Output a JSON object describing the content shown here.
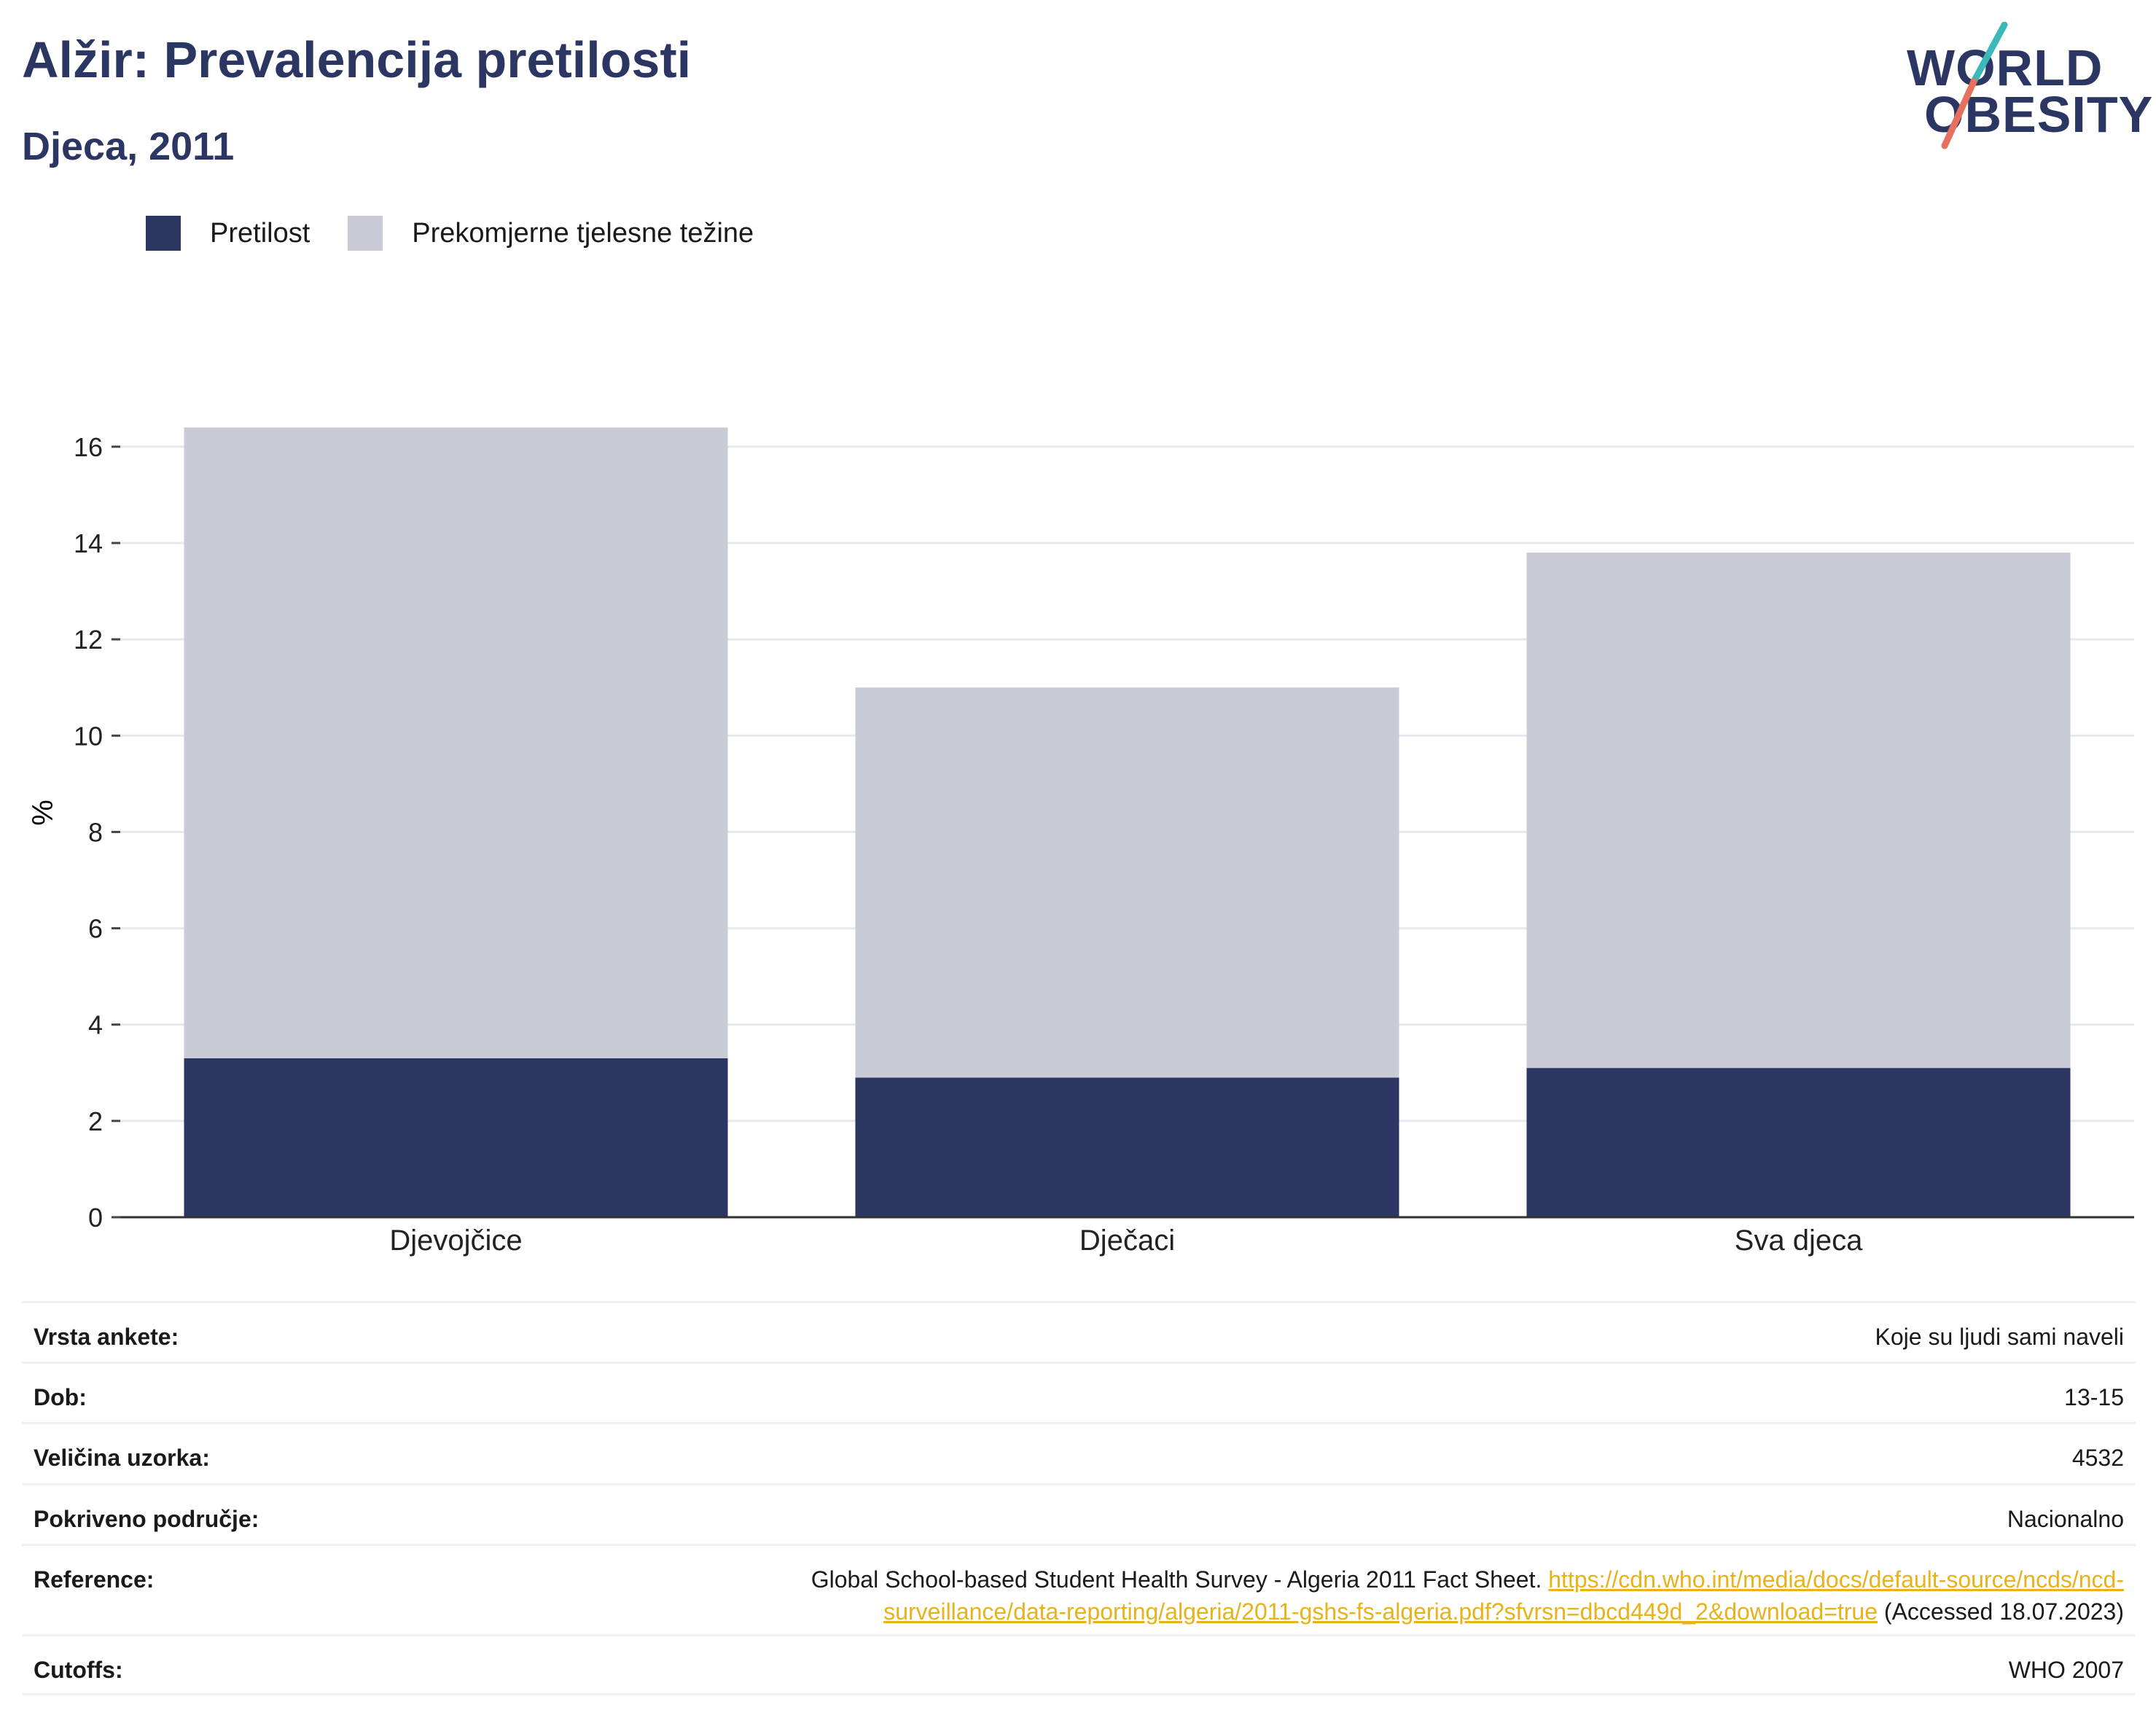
{
  "header": {
    "title": "Alžir: Prevalencija pretilosti",
    "subtitle": "Djeca, 2011"
  },
  "logo": {
    "line1": "WORLD",
    "line2": "OBESITY",
    "accent_teal": "#3bb8b8",
    "accent_red": "#e8705f"
  },
  "colors": {
    "obesity": "#2b3663",
    "overweight": "#c9cbd6",
    "brand": "#2b3663",
    "link": "#e8b21b"
  },
  "chart_data": {
    "type": "bar",
    "stacked": true,
    "categories": [
      "Djevojčice",
      "Dječaci",
      "Sva djeca"
    ],
    "series": [
      {
        "name": "Pretilost",
        "values": [
          3.3,
          2.9,
          3.1
        ]
      },
      {
        "name": "Prekomjerne tjelesne težine",
        "values": [
          13.1,
          8.1,
          10.7
        ]
      }
    ],
    "ylabel": "%",
    "ylim": [
      0,
      16.8
    ],
    "yticks": [
      0,
      2,
      4,
      6,
      8,
      10,
      12,
      14,
      16
    ],
    "grid": true,
    "legend": "top-left"
  },
  "info": {
    "rows": [
      {
        "key": "Vrsta ankete:",
        "value": "Koje su ljudi sami naveli"
      },
      {
        "key": "Dob:",
        "value": "13-15"
      },
      {
        "key": "Veličina uzorka:",
        "value": "4532"
      },
      {
        "key": "Pokriveno područje:",
        "value": "Nacionalno"
      }
    ],
    "reference": {
      "key": "Reference:",
      "text": "Global School-based Student Health Survey - Algeria 2011 Fact Sheet.",
      "link_line1": "https://cdn.who.int/media/docs/default-source/ncds/ncd-",
      "link_line2": "surveillance/data-reporting/algeria/2011-gshs-fs-algeria.pdf?sfvrsn=dbcd449d_2&download=true",
      "accessed": "(Accessed 18.07.2023)"
    },
    "cutoffs": {
      "key": "Cutoffs:",
      "value": "WHO 2007"
    }
  }
}
